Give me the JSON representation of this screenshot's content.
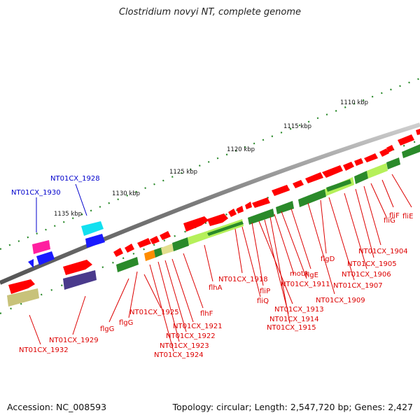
{
  "title": "Clostridium novyi NT, complete genome",
  "footer": {
    "accession": "Accession: NC_008593",
    "topology": "Topology: circular; Length: 2,547,720 bp; Genes: 2,427"
  },
  "scale": {
    "kbp_labels": [
      "1110 kbp",
      "1115 kbp",
      "1120 kbp",
      "1125 kbp",
      "1130 kbp",
      "1135 kbp"
    ]
  },
  "colors": {
    "backbone": "#8a8a8a",
    "cds_forward": "#ff0000",
    "cds_reverse_green": "#2a8a2a",
    "light_green": "#b5f05a",
    "magenta": "#ff1fa0",
    "cyan": "#12e0f0",
    "blue": "#1a1aff",
    "indigo": "#4a3a8c",
    "khaki": "#c8c27a",
    "orange": "#ff8c00",
    "label_red": "#dd0000",
    "label_blue": "#0000cc",
    "tick_green": "#2a8a2a"
  },
  "labels_blue": [
    "NT01CX_1928",
    "NT01CX_1930"
  ],
  "labels_red": [
    "fliE",
    "fliF",
    "fliG",
    "NT01CX_1904",
    "NT01CX_1905",
    "NT01CX_1906",
    "flgD",
    "NT01CX_1907",
    "NT01CX_1909",
    "flgE",
    "NT01CX_1911",
    "motA",
    "fliP",
    "NT01CX_1918",
    "fliQ",
    "NT01CX_1913",
    "NT01CX_1914",
    "NT01CX_1915",
    "flhA",
    "flhF",
    "NT01CX_1921",
    "NT01CX_1922",
    "NT01CX_1923",
    "NT01CX_1924",
    "NT01CX_1925",
    "flgG",
    "flgG",
    "NT01CX_1929",
    "NT01CX_1932"
  ]
}
